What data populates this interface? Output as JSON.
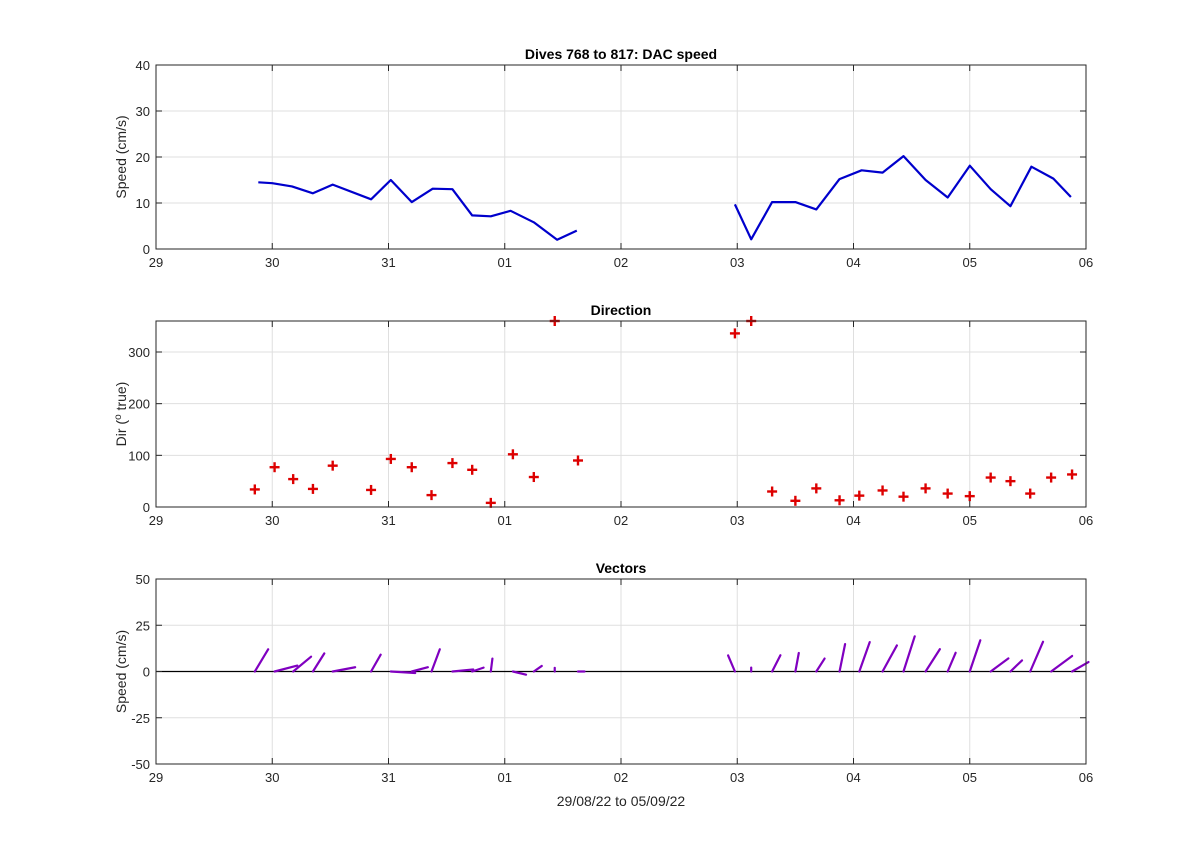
{
  "xaxis": {
    "ticks": [
      "29",
      "30",
      "31",
      "01",
      "02",
      "03",
      "04",
      "05",
      "06"
    ],
    "xlabel": "29/08/22 to 05/09/22"
  },
  "chart_data": [
    {
      "type": "line",
      "title": "Dives 768 to 817: DAC speed",
      "ylabel": "Speed (cm/s)",
      "ylim": [
        0,
        40
      ],
      "yticks": [
        "0",
        "10",
        "20",
        "30",
        "40"
      ],
      "xlim_days": [
        0,
        8
      ],
      "grid": true,
      "color": "#0000cc",
      "series": [
        {
          "x": [
            0.88,
            1.0,
            1.17,
            1.35,
            1.52,
            1.85,
            2.02,
            2.2,
            2.38,
            2.55,
            2.72,
            2.88,
            3.05,
            3.25,
            3.45,
            3.62
          ],
          "y": [
            14.5,
            14.3,
            13.6,
            12.1,
            14.0,
            10.8,
            15.0,
            10.2,
            13.1,
            13.0,
            7.3,
            7.1,
            8.3,
            5.8,
            2.0,
            4.0
          ]
        },
        {
          "x": [
            4.98,
            5.12,
            5.3,
            5.5,
            5.68,
            5.88,
            6.07,
            6.25,
            6.43,
            6.62,
            6.81,
            7.0,
            7.18,
            7.35,
            7.53,
            7.72,
            7.87
          ],
          "y": [
            9.7,
            2.1,
            10.2,
            10.2,
            8.6,
            15.2,
            17.1,
            16.6,
            20.2,
            15.0,
            11.2,
            18.1,
            13.0,
            9.3,
            17.9,
            15.3,
            11.3
          ]
        }
      ]
    },
    {
      "type": "scatter",
      "title": "Direction",
      "ylabel": "Dir (o true)",
      "ylim": [
        0,
        360
      ],
      "yticks": [
        "0",
        "100",
        "200",
        "300"
      ],
      "xlim_days": [
        0,
        8
      ],
      "grid": true,
      "color": "#dd0000",
      "marker": "+",
      "points": {
        "x": [
          0.85,
          1.02,
          1.18,
          1.35,
          1.52,
          1.85,
          2.02,
          2.2,
          2.37,
          2.55,
          2.72,
          2.88,
          3.07,
          3.25,
          3.43,
          3.63,
          4.98,
          5.12,
          5.3,
          5.5,
          5.68,
          5.88,
          6.05,
          6.25,
          6.43,
          6.62,
          6.81,
          7.0,
          7.18,
          7.35,
          7.52,
          7.7,
          7.88
        ],
        "y": [
          34,
          77,
          54,
          35,
          80,
          33,
          93,
          77,
          23,
          85,
          72,
          8,
          102,
          58,
          360,
          90,
          336,
          360,
          30,
          12,
          36,
          13,
          22,
          32,
          20,
          36,
          26,
          21,
          57,
          50,
          26,
          57,
          63
        ]
      }
    },
    {
      "type": "line",
      "subtype": "vectors",
      "title": "Vectors",
      "ylabel": "Speed (cm/s)",
      "ylim": [
        -50,
        50
      ],
      "yticks": [
        "-50",
        "-25",
        "0",
        "25",
        "50"
      ],
      "xlim_days": [
        0,
        8
      ],
      "grid": true,
      "color": "#8000c0",
      "vectors": [
        {
          "x": 0.85,
          "u": 8.2,
          "v": 12.0
        },
        {
          "x": 1.02,
          "u": 14.0,
          "v": 3.2
        },
        {
          "x": 1.18,
          "u": 11.0,
          "v": 8.0
        },
        {
          "x": 1.35,
          "u": 7.0,
          "v": 9.8
        },
        {
          "x": 1.52,
          "u": 13.8,
          "v": 2.3
        },
        {
          "x": 1.85,
          "u": 5.9,
          "v": 9.1
        },
        {
          "x": 2.02,
          "u": 15.0,
          "v": -0.8
        },
        {
          "x": 2.2,
          "u": 9.9,
          "v": 2.3
        },
        {
          "x": 2.37,
          "u": 5.1,
          "v": 12.0
        },
        {
          "x": 2.55,
          "u": 12.8,
          "v": 1.1
        },
        {
          "x": 2.72,
          "u": 7.0,
          "v": 2.1
        },
        {
          "x": 2.88,
          "u": 1.0,
          "v": 7.0
        },
        {
          "x": 3.07,
          "u": 8.1,
          "v": -1.7
        },
        {
          "x": 3.25,
          "u": 4.9,
          "v": 3.0
        },
        {
          "x": 3.43,
          "u": 0.0,
          "v": 2.0
        },
        {
          "x": 3.63,
          "u": 4.0,
          "v": 0.0
        },
        {
          "x": 4.98,
          "u": -4.2,
          "v": 8.7
        },
        {
          "x": 5.12,
          "u": 0.0,
          "v": 2.1
        },
        {
          "x": 5.3,
          "u": 5.1,
          "v": 8.8
        },
        {
          "x": 5.5,
          "u": 2.1,
          "v": 10.0
        },
        {
          "x": 5.68,
          "u": 5.1,
          "v": 7.0
        },
        {
          "x": 5.88,
          "u": 3.4,
          "v": 14.8
        },
        {
          "x": 6.05,
          "u": 6.4,
          "v": 15.9
        },
        {
          "x": 6.25,
          "u": 8.8,
          "v": 14.1
        },
        {
          "x": 6.43,
          "u": 6.9,
          "v": 19.0
        },
        {
          "x": 6.62,
          "u": 8.8,
          "v": 12.1
        },
        {
          "x": 6.81,
          "u": 4.9,
          "v": 10.1
        },
        {
          "x": 7.0,
          "u": 6.5,
          "v": 16.9
        },
        {
          "x": 7.18,
          "u": 10.9,
          "v": 7.1
        },
        {
          "x": 7.35,
          "u": 7.1,
          "v": 6.0
        },
        {
          "x": 7.52,
          "u": 7.9,
          "v": 16.1
        },
        {
          "x": 7.7,
          "u": 12.9,
          "v": 8.4
        },
        {
          "x": 7.88,
          "u": 10.1,
          "v": 5.1
        }
      ]
    }
  ]
}
